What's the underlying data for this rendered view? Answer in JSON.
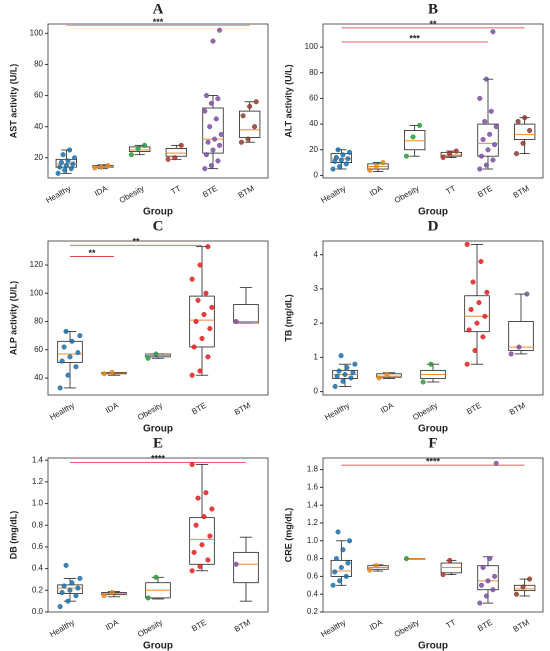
{
  "chart_data": [
    {
      "type": "box",
      "title": "A",
      "ylabel": "AST activity (U/L)",
      "xlabel": "Group",
      "categories": [
        "Healthy",
        "IDA",
        "Obesity",
        "TT",
        "BTE",
        "BTM"
      ],
      "colors": [
        "#1f6fa8",
        "#e08a1e",
        "#2e9a3a",
        "#a8322a",
        "#7b4fa0",
        "#8a3d2a"
      ],
      "ylim": [
        7,
        106
      ],
      "yticks": [
        20,
        40,
        60,
        80,
        100
      ],
      "boxes": [
        {
          "min": 10,
          "q1": 14,
          "median": 16,
          "q3": 19,
          "max": 25,
          "points": [
            10,
            12,
            13,
            14,
            15,
            16,
            17,
            18,
            20,
            22,
            25
          ]
        },
        {
          "min": 13,
          "q1": 14,
          "median": 14.5,
          "q3": 15,
          "max": 15.5,
          "points": [
            13.5,
            14,
            15
          ]
        },
        {
          "min": 22,
          "q1": 24,
          "median": 25,
          "q3": 27,
          "max": 28,
          "points": [
            22,
            26,
            28
          ]
        },
        {
          "min": 19,
          "q1": 21,
          "median": 23,
          "q3": 26,
          "max": 28,
          "points": [
            19,
            20,
            28
          ]
        },
        {
          "min": 13,
          "q1": 23,
          "median": 32,
          "q3": 52,
          "max": 60,
          "points": [
            13,
            15,
            18,
            22,
            25,
            28,
            30,
            32,
            35,
            40,
            45,
            50,
            55,
            58,
            60,
            95,
            102
          ]
        },
        {
          "min": 30,
          "q1": 33,
          "median": 38,
          "q3": 50,
          "max": 56,
          "points": [
            30,
            32,
            40,
            47,
            53,
            56
          ]
        }
      ],
      "significance": [
        {
          "label": "***",
          "from": 0,
          "to": 5,
          "y": 105,
          "color": "#f0a040"
        }
      ]
    },
    {
      "type": "box",
      "title": "B",
      "ylabel": "ALT activity (U/L)",
      "xlabel": "Group",
      "categories": [
        "Healthy",
        "IDA",
        "Obesity",
        "TT",
        "BTE",
        "BTM"
      ],
      "colors": [
        "#1f6fa8",
        "#e08a1e",
        "#2e9a3a",
        "#a8322a",
        "#7b4fa0",
        "#8a3d2a"
      ],
      "ylim": [
        -2,
        118
      ],
      "yticks": [
        0,
        20,
        40,
        60,
        80,
        100
      ],
      "boxes": [
        {
          "min": 5,
          "q1": 10,
          "median": 13,
          "q3": 17,
          "max": 20,
          "points": [
            5,
            7,
            9,
            11,
            12,
            13,
            14,
            16,
            18,
            20
          ]
        },
        {
          "min": 3,
          "q1": 5,
          "median": 7,
          "q3": 9,
          "max": 10,
          "points": [
            4,
            7,
            10
          ]
        },
        {
          "min": 15,
          "q1": 20,
          "median": 27,
          "q3": 35,
          "max": 39,
          "points": [
            15,
            30,
            39
          ]
        },
        {
          "min": 14,
          "q1": 15,
          "median": 16,
          "q3": 18,
          "max": 19,
          "points": [
            14,
            17,
            19
          ]
        },
        {
          "min": 5,
          "q1": 15,
          "median": 25,
          "q3": 40,
          "max": 75,
          "points": [
            5,
            8,
            12,
            15,
            20,
            24,
            28,
            32,
            38,
            42,
            50,
            60,
            75,
            112
          ]
        },
        {
          "min": 17,
          "q1": 28,
          "median": 32,
          "q3": 40,
          "max": 45,
          "points": [
            17,
            25,
            35,
            42,
            45
          ]
        }
      ],
      "significance": [
        {
          "label": "**",
          "from": 0,
          "to": 5,
          "y": 115,
          "color": "#e03030"
        },
        {
          "label": "***",
          "from": 0,
          "to": 4,
          "y": 104,
          "color": "#e03030"
        }
      ]
    },
    {
      "type": "box",
      "title": "C",
      "ylabel": "ALP activity (U/L)",
      "xlabel": "Group",
      "categories": [
        "Healthy",
        "IDA",
        "Obesity",
        "BTE",
        "BTM"
      ],
      "colors": [
        "#1f6fa8",
        "#e08a1e",
        "#2e9a3a",
        "#e02020",
        "#7b4fa0"
      ],
      "ylim": [
        28,
        137
      ],
      "yticks": [
        40,
        60,
        80,
        100,
        120
      ],
      "boxes": [
        {
          "min": 33,
          "q1": 51,
          "median": 57,
          "q3": 66,
          "max": 73,
          "points": [
            33,
            42,
            48,
            52,
            55,
            58,
            62,
            66,
            70,
            73
          ]
        },
        {
          "min": 42,
          "q1": 43,
          "median": 43.5,
          "q3": 44,
          "max": 44,
          "points": [
            43,
            44
          ]
        },
        {
          "min": 54,
          "q1": 55,
          "median": 56,
          "q3": 57,
          "max": 57,
          "points": [
            54,
            57
          ]
        },
        {
          "min": 42,
          "q1": 62,
          "median": 81,
          "q3": 98,
          "max": 133,
          "points": [
            42,
            45,
            55,
            62,
            68,
            75,
            80,
            85,
            90,
            95,
            100,
            110,
            120,
            133
          ]
        },
        {
          "min": 79,
          "q1": 79,
          "median": 80,
          "q3": 92,
          "max": 104,
          "points": [
            80
          ]
        }
      ],
      "significance": [
        {
          "label": "**",
          "from": 0,
          "to": 1,
          "y": 126,
          "color": "#e03030"
        },
        {
          "label": "**",
          "from": 0,
          "to": 3,
          "y": 134,
          "color": "#e03030"
        }
      ]
    },
    {
      "type": "box",
      "title": "D",
      "ylabel": "TB (mg/dL)",
      "xlabel": "Group",
      "categories": [
        "Healthy",
        "IDA",
        "Obesity",
        "BTE",
        "BTM"
      ],
      "colors": [
        "#1f6fa8",
        "#e08a1e",
        "#2e9a3a",
        "#e02020",
        "#7b4fa0"
      ],
      "ylim": [
        -0.1,
        4.4
      ],
      "yticks": [
        0,
        1,
        2,
        3,
        4
      ],
      "boxes": [
        {
          "min": 0.15,
          "q1": 0.38,
          "median": 0.5,
          "q3": 0.62,
          "max": 0.8,
          "points": [
            0.15,
            0.3,
            0.4,
            0.45,
            0.5,
            0.55,
            0.6,
            0.7,
            0.8,
            1.05
          ]
        },
        {
          "min": 0.38,
          "q1": 0.42,
          "median": 0.45,
          "q3": 0.52,
          "max": 0.55,
          "points": [
            0.4,
            0.5
          ]
        },
        {
          "min": 0.28,
          "q1": 0.38,
          "median": 0.5,
          "q3": 0.62,
          "max": 0.8,
          "points": [
            0.28,
            0.8
          ]
        },
        {
          "min": 0.8,
          "q1": 1.75,
          "median": 2.2,
          "q3": 2.8,
          "max": 4.3,
          "points": [
            0.8,
            1.2,
            1.6,
            1.8,
            2.0,
            2.2,
            2.4,
            2.6,
            2.9,
            3.2,
            3.8,
            4.3
          ]
        },
        {
          "min": 1.1,
          "q1": 1.2,
          "median": 1.3,
          "q3": 2.05,
          "max": 2.85,
          "points": [
            1.1,
            1.3,
            2.85
          ]
        }
      ],
      "significance": []
    },
    {
      "type": "box",
      "title": "E",
      "ylabel": "DB (mg/dL)",
      "xlabel": "Group",
      "categories": [
        "Healthy",
        "IDA",
        "Obesity",
        "BTE",
        "BTM"
      ],
      "colors": [
        "#1f6fa8",
        "#e08a1e",
        "#2e9a3a",
        "#e02020",
        "#7b4fa0"
      ],
      "ylim": [
        0,
        1.42
      ],
      "yticks": [
        {
          "value": 0,
          "label": "0.0"
        },
        0.2,
        0.4,
        0.6,
        0.8,
        {
          "value": 1,
          "label": "1.0"
        },
        1.2,
        1.4
      ],
      "boxes": [
        {
          "min": 0.1,
          "q1": 0.17,
          "median": 0.22,
          "q3": 0.25,
          "max": 0.31,
          "points": [
            0.05,
            0.1,
            0.15,
            0.18,
            0.2,
            0.22,
            0.24,
            0.27,
            0.31,
            0.43
          ]
        },
        {
          "min": 0.14,
          "q1": 0.16,
          "median": 0.17,
          "q3": 0.18,
          "max": 0.19,
          "points": [
            0.15,
            0.18
          ]
        },
        {
          "min": 0.12,
          "q1": 0.13,
          "median": 0.2,
          "q3": 0.27,
          "max": 0.32,
          "points": [
            0.13,
            0.32
          ]
        },
        {
          "min": 0.38,
          "q1": 0.44,
          "median": 0.67,
          "q3": 0.87,
          "max": 1.36,
          "points": [
            0.38,
            0.42,
            0.48,
            0.55,
            0.62,
            0.7,
            0.8,
            0.88,
            0.95,
            1.05,
            1.1,
            1.36
          ]
        },
        {
          "min": 0.1,
          "q1": 0.27,
          "median": 0.44,
          "q3": 0.55,
          "max": 0.69,
          "points": [
            0.44
          ]
        }
      ],
      "significance": [
        {
          "label": "****",
          "from": 0,
          "to": 4,
          "y": 1.38,
          "color": "#e03030"
        }
      ]
    },
    {
      "type": "box",
      "title": "F",
      "ylabel": "CRE (mg/dL)",
      "xlabel": "Group",
      "categories": [
        "Healthy",
        "IDA",
        "Obesity",
        "TT",
        "BTE",
        "BTM"
      ],
      "colors": [
        "#1f6fa8",
        "#e08a1e",
        "#2e9a3a",
        "#a8322a",
        "#7b4fa0",
        "#8a3d2a"
      ],
      "ylim": [
        0.2,
        1.93
      ],
      "yticks": [
        0.2,
        0.4,
        0.6,
        0.8,
        {
          "value": 1,
          "label": "1.0"
        },
        1.2,
        1.4,
        1.6,
        1.8
      ],
      "boxes": [
        {
          "min": 0.5,
          "q1": 0.6,
          "median": 0.66,
          "q3": 0.78,
          "max": 1.0,
          "points": [
            0.5,
            0.55,
            0.6,
            0.65,
            0.7,
            0.75,
            0.8,
            0.9,
            1.0,
            1.1
          ]
        },
        {
          "min": 0.66,
          "q1": 0.68,
          "median": 0.7,
          "q3": 0.72,
          "max": 0.73,
          "points": [
            0.67,
            0.72
          ]
        },
        {
          "min": 0.8,
          "q1": 0.8,
          "median": 0.8,
          "q3": 0.8,
          "max": 0.8,
          "points": [
            0.8
          ]
        },
        {
          "min": 0.62,
          "q1": 0.64,
          "median": 0.7,
          "q3": 0.75,
          "max": 0.78,
          "points": [
            0.62,
            0.78
          ]
        },
        {
          "min": 0.3,
          "q1": 0.45,
          "median": 0.55,
          "q3": 0.72,
          "max": 0.82,
          "points": [
            0.3,
            0.38,
            0.45,
            0.5,
            0.55,
            0.6,
            0.7,
            0.8,
            1.87
          ]
        },
        {
          "min": 0.38,
          "q1": 0.44,
          "median": 0.46,
          "q3": 0.5,
          "max": 0.57,
          "points": [
            0.4,
            0.48,
            0.57
          ]
        }
      ],
      "significance": [
        {
          "label": "****",
          "from": 0,
          "to": 5,
          "y": 1.85,
          "color": "#e03030"
        }
      ]
    }
  ]
}
